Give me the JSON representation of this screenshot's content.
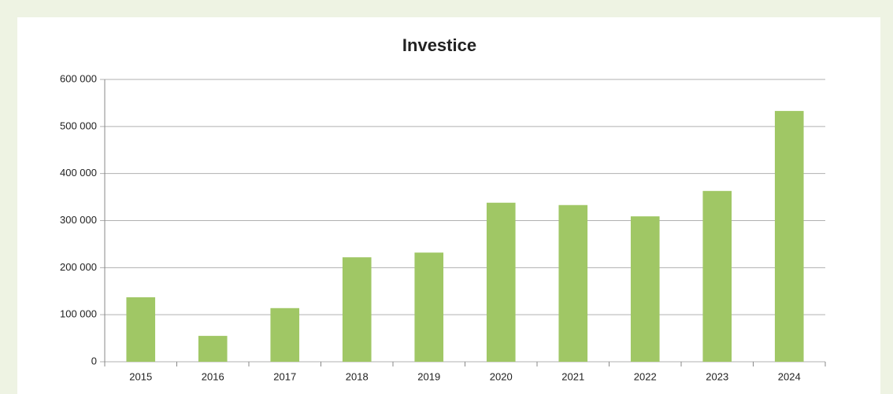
{
  "chart_data": {
    "type": "bar",
    "title": "Investice",
    "categories": [
      "2015",
      "2016",
      "2017",
      "2018",
      "2019",
      "2020",
      "2021",
      "2022",
      "2023",
      "2024"
    ],
    "values": [
      137000,
      55000,
      114000,
      222000,
      232000,
      338000,
      333000,
      309000,
      363000,
      533000
    ],
    "color": "#a0c765",
    "ylim": [
      0,
      600000
    ],
    "yticks": [
      {
        "value": 0,
        "label": "0"
      },
      {
        "value": 100000,
        "label": "100 000"
      },
      {
        "value": 200000,
        "label": "200 000"
      },
      {
        "value": 300000,
        "label": "300 000"
      },
      {
        "value": 400000,
        "label": "400 000"
      },
      {
        "value": 500000,
        "label": "500 000"
      },
      {
        "value": 600000,
        "label": "600 000"
      }
    ],
    "grid": true
  }
}
